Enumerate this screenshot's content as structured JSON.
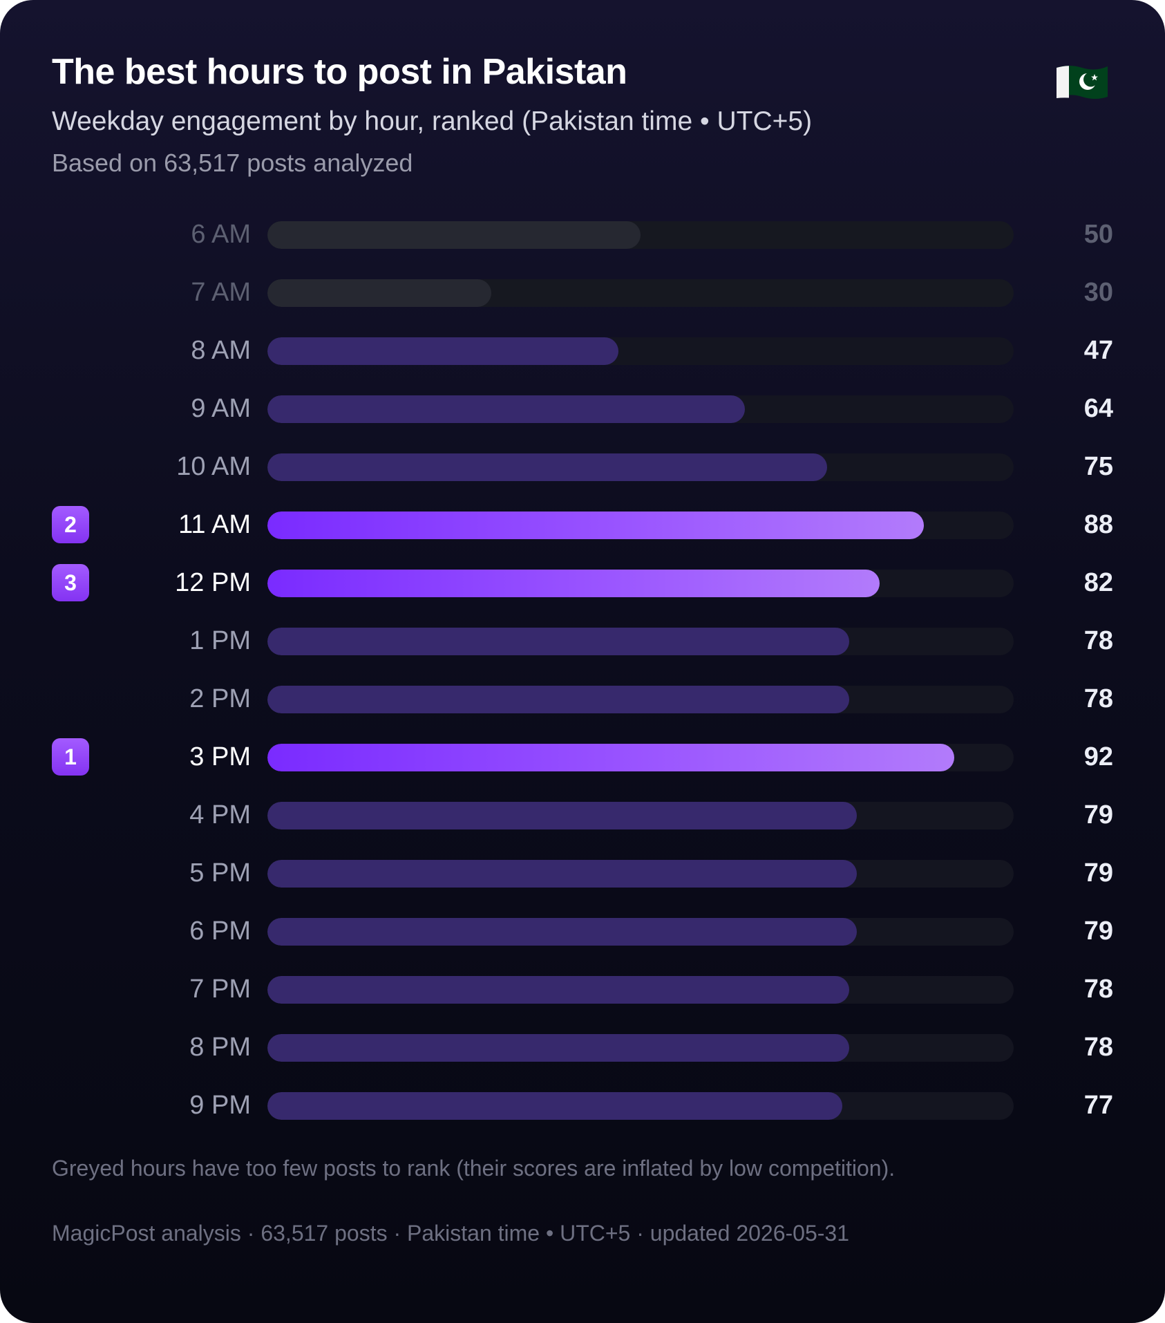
{
  "header": {
    "title": "The best hours to post in Pakistan",
    "subtitle": "Weekday engagement by hour, ranked (Pakistan time • UTC+5)",
    "based_on": "Based on 63,517 posts analyzed",
    "flag_icon": "pakistan-flag-icon"
  },
  "colors": {
    "card_background": "#0c0c1d",
    "bar_normal": "#37296d",
    "bar_low": "#262831",
    "bar_top_start": "#7a2bff",
    "bar_top_end": "#b27bfb",
    "badge": "#8f45f8",
    "flag_green": "#01411c"
  },
  "chart_data": {
    "type": "bar",
    "orientation": "horizontal",
    "categories": [
      "6 AM",
      "7 AM",
      "8 AM",
      "9 AM",
      "10 AM",
      "11 AM",
      "12 PM",
      "1 PM",
      "2 PM",
      "3 PM",
      "4 PM",
      "5 PM",
      "6 PM",
      "7 PM",
      "8 PM",
      "9 PM"
    ],
    "values": [
      50,
      30,
      47,
      64,
      75,
      88,
      82,
      78,
      78,
      92,
      79,
      79,
      79,
      78,
      78,
      77
    ],
    "value_labels": [
      "50",
      "30",
      "47",
      "64",
      "75",
      "88",
      "82",
      "78",
      "78",
      "92",
      "79",
      "79",
      "79",
      "78",
      "78",
      "77"
    ],
    "xlim": [
      0,
      100
    ],
    "greyed_hours": [
      "6 AM",
      "7 AM"
    ],
    "ranks": [
      {
        "hour": "3 PM",
        "rank": "1"
      },
      {
        "hour": "11 AM",
        "rank": "2"
      },
      {
        "hour": "12 PM",
        "rank": "3"
      }
    ],
    "grid": false,
    "legend": "none"
  },
  "note": "Greyed hours have too few posts to rank (their scores are inflated by low competition).",
  "footer": "MagicPost analysis · 63,517 posts · Pakistan time • UTC+5 · updated 2026-05-31"
}
